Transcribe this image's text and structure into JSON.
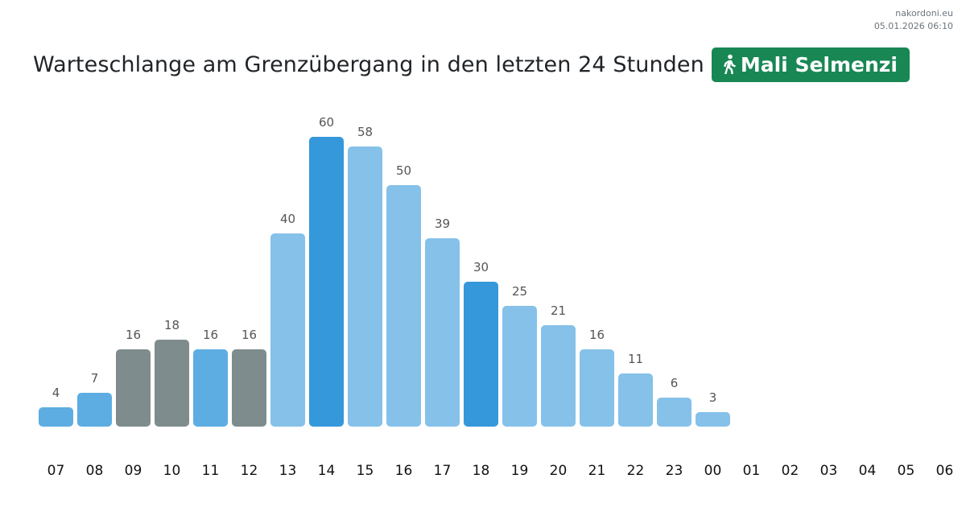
{
  "site": {
    "name": "nakordoni.eu",
    "timestamp": "05.01.2026 06:10"
  },
  "header": {
    "title": "Warteschlange am Grenzübergang in den letzten 24 Stunden",
    "crossing_icon": "pedestrian-walking-icon",
    "crossing_name": "Mali Selmenzi",
    "crossing_color": "#198754"
  },
  "chart_data": {
    "type": "bar",
    "title": "Warteschlange am Grenzübergang in den letzten 24 Stunden",
    "xlabel": "",
    "ylabel": "",
    "categories": [
      "07",
      "08",
      "09",
      "10",
      "11",
      "12",
      "13",
      "14",
      "15",
      "16",
      "17",
      "18",
      "19",
      "20",
      "21",
      "22",
      "23",
      "00",
      "01",
      "02",
      "03",
      "04",
      "05",
      "06"
    ],
    "values": [
      4,
      7,
      16,
      18,
      16,
      16,
      40,
      60,
      58,
      50,
      39,
      30,
      25,
      21,
      16,
      11,
      6,
      3,
      null,
      null,
      null,
      null,
      null,
      null
    ],
    "bar_colors": [
      "#5dade2",
      "#5dade2",
      "#7f8c8d",
      "#7f8c8d",
      "#5dade2",
      "#7f8c8d",
      "#85c1e9",
      "#3498db",
      "#85c1e9",
      "#85c1e9",
      "#85c1e9",
      "#3498db",
      "#85c1e9",
      "#85c1e9",
      "#85c1e9",
      "#85c1e9",
      "#85c1e9",
      "#85c1e9",
      null,
      null,
      null,
      null,
      null,
      null
    ],
    "ylim": [
      0,
      60
    ],
    "grid": false,
    "legend": "none",
    "data_labels": true
  }
}
